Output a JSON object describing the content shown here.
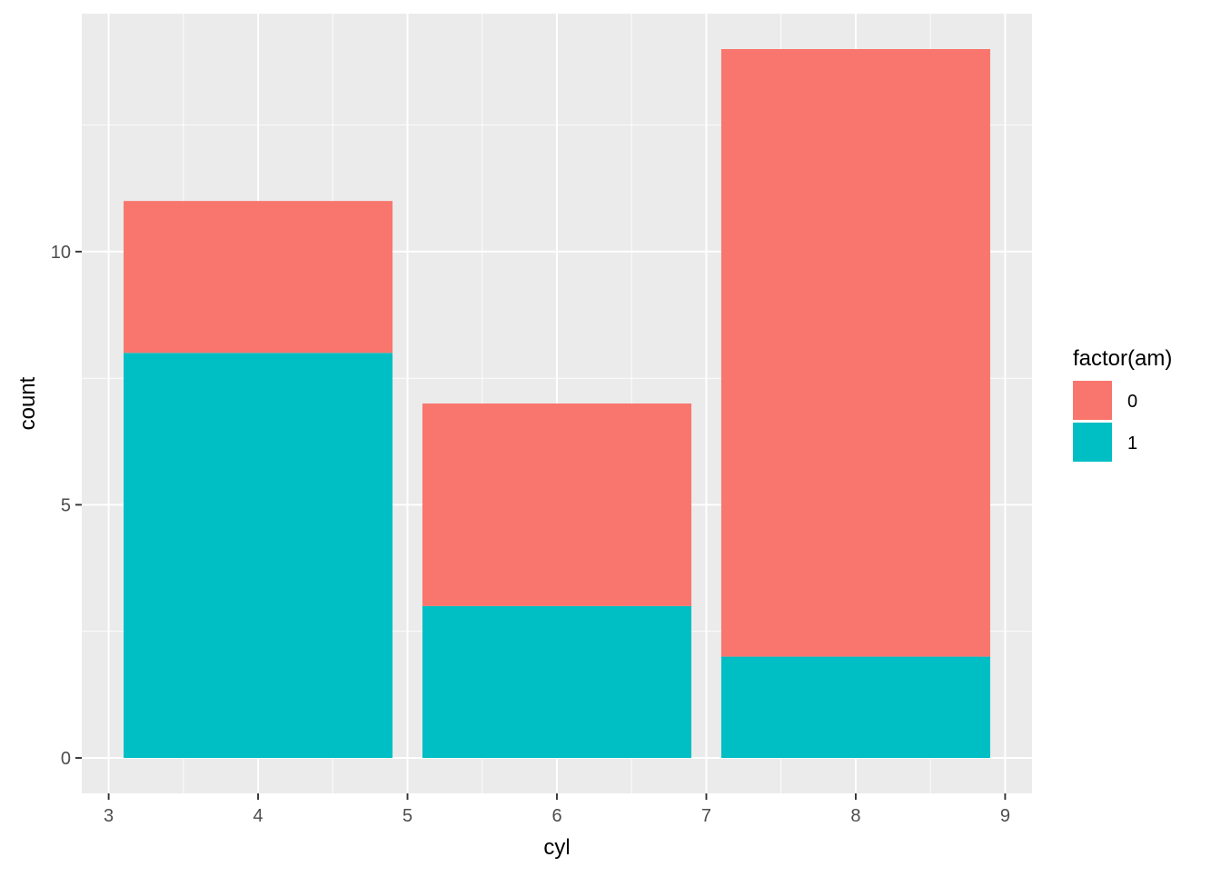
{
  "chart_data": {
    "type": "bar",
    "stacked": true,
    "xlabel": "cyl",
    "ylabel": "count",
    "title": "",
    "x_values": [
      4,
      6,
      8
    ],
    "bar_width": 1.8,
    "xlim": [
      2.82,
      9.18
    ],
    "ylim": [
      -0.7,
      14.7
    ],
    "x_ticks": [
      3,
      4,
      5,
      6,
      7,
      8,
      9
    ],
    "y_ticks": [
      0,
      5,
      10
    ],
    "x_tick_labels": [
      "3",
      "4",
      "5",
      "6",
      "7",
      "8",
      "9"
    ],
    "y_tick_labels": [
      "0",
      "5",
      "10"
    ],
    "grid": true,
    "series": [
      {
        "name": "1",
        "color": "#00BFC4",
        "values": [
          8,
          3,
          2
        ]
      },
      {
        "name": "0",
        "color": "#F8766D",
        "values": [
          3,
          4,
          12
        ]
      }
    ],
    "legend": {
      "title": "factor(am)",
      "position": "right",
      "entries": [
        {
          "label": "0",
          "color": "#F8766D"
        },
        {
          "label": "1",
          "color": "#00BFC4"
        }
      ]
    },
    "colors": {
      "panel": "#EBEBEB",
      "grid": "#FFFFFF"
    }
  }
}
